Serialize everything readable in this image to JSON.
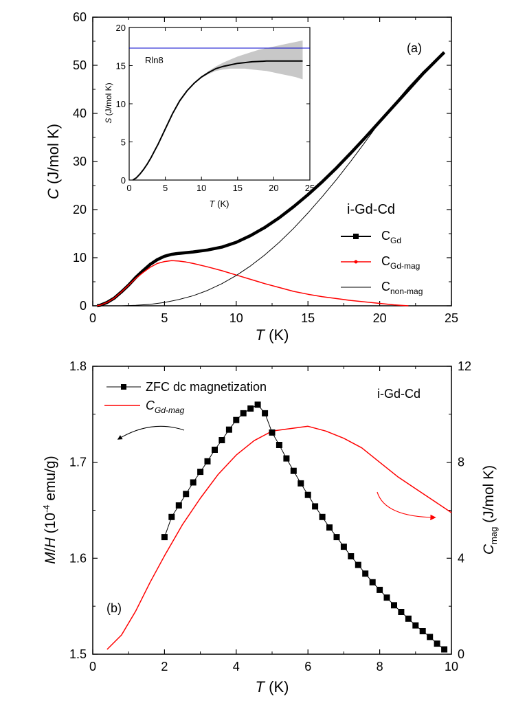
{
  "chart_data": [
    {
      "panel": "(a)",
      "type": "line",
      "xlabel": "T (K)",
      "ylabel": "C (J/mol K)",
      "xlim": [
        0,
        25
      ],
      "ylim": [
        0,
        60
      ],
      "xticks": [
        "0",
        "5",
        "10",
        "15",
        "20",
        "25"
      ],
      "yticks": [
        "0",
        "10",
        "20",
        "30",
        "40",
        "50",
        "60"
      ],
      "sample_label": "i-Gd-Cd",
      "legend": [
        {
          "main": "C",
          "sub": "Gd"
        },
        {
          "main": "C",
          "sub": "Gd-mag"
        },
        {
          "main": "C",
          "sub": "non-mag"
        }
      ],
      "series": [
        {
          "name": "C_Gd",
          "color": "#000000",
          "x": [
            0.3,
            0.5,
            1,
            1.5,
            2,
            2.5,
            3,
            3.5,
            4,
            4.5,
            5,
            5.5,
            6,
            7,
            8,
            9,
            10,
            11,
            12,
            13,
            14,
            15,
            16,
            17,
            18,
            19,
            20,
            21,
            22,
            23,
            24,
            24.5
          ],
          "y": [
            0,
            0.1,
            0.7,
            1.6,
            2.9,
            4.3,
            5.9,
            7.3,
            8.6,
            9.6,
            10.3,
            10.7,
            10.9,
            11.2,
            11.6,
            12.2,
            13.2,
            14.6,
            16.3,
            18.3,
            20.6,
            23.1,
            25.8,
            28.7,
            31.8,
            35.0,
            38.3,
            41.6,
            44.9,
            48.2,
            51.2,
            52.7
          ]
        },
        {
          "name": "C_Gd-mag",
          "color": "#ff0000",
          "x": [
            0.3,
            0.5,
            1,
            1.5,
            2,
            2.5,
            3,
            3.5,
            4,
            4.5,
            5,
            5.5,
            6,
            6.5,
            7,
            8,
            9,
            10,
            11,
            12,
            13,
            14,
            15,
            16,
            17,
            18,
            19,
            20,
            21,
            22
          ],
          "y": [
            0,
            0.1,
            0.7,
            1.6,
            2.9,
            4.3,
            5.7,
            6.9,
            8.0,
            8.8,
            9.2,
            9.4,
            9.3,
            9.1,
            8.8,
            8.1,
            7.3,
            6.4,
            5.5,
            4.6,
            3.8,
            3.0,
            2.4,
            1.9,
            1.5,
            1.1,
            0.8,
            0.5,
            0.2,
            0
          ]
        },
        {
          "name": "C_non-mag",
          "color": "#000000",
          "x": [
            2,
            3,
            4,
            5,
            6,
            7,
            8,
            9,
            10,
            11,
            12,
            13,
            14,
            15,
            16,
            17,
            18,
            19,
            20,
            21,
            22,
            23,
            24,
            24.5
          ],
          "y": [
            0,
            0.1,
            0.3,
            0.7,
            1.3,
            2.1,
            3.2,
            4.6,
            6.3,
            8.3,
            10.6,
            13.2,
            16.1,
            19.3,
            22.7,
            26.3,
            30.1,
            34.1,
            38.2,
            41.9,
            45.4,
            48.6,
            51.4,
            52.7
          ]
        }
      ]
    },
    {
      "panel": "inset",
      "type": "line",
      "xlabel": "T (K)",
      "ylabel": "S (J/mol K)",
      "xlim": [
        0,
        25
      ],
      "ylim": [
        0,
        20
      ],
      "xticks": [
        "0",
        "5",
        "10",
        "15",
        "20",
        "25"
      ],
      "yticks": [
        "0",
        "5",
        "10",
        "15",
        "20"
      ],
      "reference_label": "Rln8",
      "reference_value": 17.3,
      "series": [
        {
          "name": "S",
          "color": "#000000",
          "x": [
            0.5,
            1,
            1.5,
            2,
            2.5,
            3,
            3.5,
            4,
            5,
            6,
            7,
            8,
            9,
            10,
            11,
            12,
            13,
            14,
            15,
            16,
            17,
            18,
            19,
            20,
            21,
            22,
            23,
            24
          ],
          "y": [
            0,
            0.3,
            0.8,
            1.4,
            2.1,
            2.9,
            3.8,
            4.7,
            6.7,
            8.7,
            10.4,
            11.7,
            12.7,
            13.5,
            14.1,
            14.6,
            14.9,
            15.1,
            15.3,
            15.4,
            15.5,
            15.55,
            15.6,
            15.6,
            15.6,
            15.6,
            15.6,
            15.6
          ]
        },
        {
          "name": "S upper bound",
          "x": [
            10,
            11,
            12,
            13,
            14,
            15,
            16,
            17,
            18,
            19,
            20,
            21,
            22,
            23,
            24
          ],
          "y": [
            13.6,
            14.3,
            14.9,
            15.4,
            15.8,
            16.2,
            16.5,
            16.8,
            17.1,
            17.3,
            17.5,
            17.7,
            17.9,
            18.1,
            18.3
          ]
        },
        {
          "name": "S lower bound",
          "x": [
            10,
            11,
            12,
            13,
            14,
            15,
            16,
            17,
            18,
            19,
            20,
            21,
            22,
            23,
            24
          ],
          "y": [
            13.4,
            13.9,
            14.3,
            14.5,
            14.6,
            14.6,
            14.6,
            14.5,
            14.4,
            14.3,
            14.1,
            13.9,
            13.7,
            13.5,
            13.2
          ]
        }
      ]
    },
    {
      "panel": "(b)",
      "type": "line",
      "xlabel": "T (K)",
      "ylabel_left": "M/H (10^-4 emu/g)",
      "ylabel_right": "C_mag (J/mol K)",
      "xlim": [
        0,
        10
      ],
      "ylim_left": [
        1.5,
        1.8
      ],
      "ylim_right": [
        0,
        12
      ],
      "xticks": [
        "0",
        "2",
        "4",
        "6",
        "8",
        "10"
      ],
      "yticks_left": [
        "1.5",
        "1.6",
        "1.7",
        "1.8"
      ],
      "yticks_right": [
        "0",
        "4",
        "8",
        "12"
      ],
      "sample_label": "i-Gd-Cd",
      "legend": [
        {
          "main": "ZFC dc magnetization",
          "sub": ""
        },
        {
          "main": "C",
          "sub": "Gd-mag"
        }
      ],
      "series": [
        {
          "name": "ZFC dc magnetization",
          "axis": "left",
          "color": "#000000",
          "x": [
            2.0,
            2.2,
            2.4,
            2.6,
            2.8,
            3.0,
            3.2,
            3.4,
            3.6,
            3.8,
            4.0,
            4.2,
            4.4,
            4.6,
            4.8,
            5.0,
            5.2,
            5.4,
            5.6,
            5.8,
            6.0,
            6.2,
            6.4,
            6.6,
            6.8,
            7.0,
            7.2,
            7.4,
            7.6,
            7.8,
            8.0,
            8.2,
            8.4,
            8.6,
            8.8,
            9.0,
            9.2,
            9.4,
            9.6,
            9.8
          ],
          "y": [
            1.622,
            1.643,
            1.655,
            1.667,
            1.679,
            1.69,
            1.701,
            1.713,
            1.723,
            1.734,
            1.744,
            1.751,
            1.756,
            1.76,
            1.751,
            1.731,
            1.718,
            1.704,
            1.691,
            1.678,
            1.666,
            1.654,
            1.643,
            1.632,
            1.622,
            1.612,
            1.602,
            1.593,
            1.584,
            1.575,
            1.567,
            1.559,
            1.551,
            1.544,
            1.537,
            1.53,
            1.524,
            1.518,
            1.511,
            1.505
          ]
        },
        {
          "name": "C_Gd-mag",
          "axis": "right",
          "color": "#ff0000",
          "x": [
            0.4,
            0.8,
            1.2,
            1.6,
            2.0,
            2.5,
            3.0,
            3.5,
            4.0,
            4.5,
            5.0,
            5.5,
            6.0,
            6.5,
            7.0,
            7.5,
            8.0,
            8.5,
            9.0,
            9.5,
            10.0
          ],
          "y": [
            0.2,
            0.8,
            1.8,
            3.0,
            4.1,
            5.4,
            6.5,
            7.5,
            8.3,
            8.9,
            9.3,
            9.4,
            9.5,
            9.3,
            9.0,
            8.6,
            8.0,
            7.4,
            6.9,
            6.4,
            5.9
          ]
        }
      ],
      "annotations": [
        "arrow pointing left (M/H axis)",
        "arrow pointing right (C_mag axis)"
      ]
    }
  ]
}
